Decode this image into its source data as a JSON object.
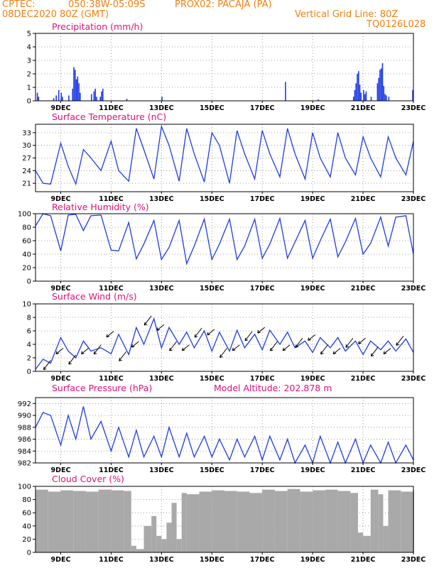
{
  "header": {
    "source": "CPTEC:",
    "coords": "050:38W-05:09S",
    "location": "PROX02: PACAJA (PA)",
    "run": "08DEC2020 80Z (GMT)",
    "grid_note": "Vertical Grid Line: 80Z",
    "code": "TQ0126L028"
  },
  "colors": {
    "series": "#1e3ce6",
    "title": "#e0107a",
    "header": "#f08010",
    "cloud": "#a9a9a9",
    "wind": "#000000"
  },
  "x_ticks": [
    "9DEC",
    "11DEC",
    "13DEC",
    "15DEC",
    "17DEC",
    "19DEC",
    "21DEC",
    "23DEC"
  ],
  "chart_data": [
    {
      "type": "bar",
      "title": "Precipitation (mm/h)",
      "ylim": [
        0,
        5
      ],
      "yticks": [
        0,
        1,
        2,
        3,
        4,
        5
      ],
      "x_range_days": [
        8.0,
        23.0
      ],
      "grid": true,
      "bars": [
        [
          8.05,
          0.6
        ],
        [
          8.1,
          0.3
        ],
        [
          8.7,
          0.2
        ],
        [
          8.8,
          0.4
        ],
        [
          8.9,
          0.8
        ],
        [
          9.0,
          0.6
        ],
        [
          9.05,
          0.3
        ],
        [
          9.3,
          0.4
        ],
        [
          9.45,
          0.9
        ],
        [
          9.5,
          2.5
        ],
        [
          9.55,
          2.3
        ],
        [
          9.6,
          1.6
        ],
        [
          9.65,
          1.8
        ],
        [
          9.7,
          1.3
        ],
        [
          9.75,
          0.6
        ],
        [
          10.2,
          0.5
        ],
        [
          10.3,
          0.7
        ],
        [
          10.35,
          0.9
        ],
        [
          10.4,
          0.3
        ],
        [
          10.55,
          0.3
        ],
        [
          10.6,
          0.7
        ],
        [
          10.65,
          0.9
        ],
        [
          11.6,
          0.15
        ],
        [
          13.0,
          0.3
        ],
        [
          17.9,
          1.4
        ],
        [
          19.2,
          0.1
        ],
        [
          20.6,
          0.3
        ],
        [
          20.65,
          0.8
        ],
        [
          20.7,
          1.3
        ],
        [
          20.75,
          2.0
        ],
        [
          20.8,
          2.2
        ],
        [
          20.85,
          1.2
        ],
        [
          20.9,
          0.6
        ],
        [
          21.0,
          0.8
        ],
        [
          21.05,
          0.5
        ],
        [
          21.1,
          0.7
        ],
        [
          21.3,
          0.3
        ],
        [
          21.55,
          1.3
        ],
        [
          21.6,
          1.7
        ],
        [
          21.65,
          2.3
        ],
        [
          21.7,
          2.4
        ],
        [
          21.75,
          2.8
        ],
        [
          21.8,
          1.1
        ],
        [
          21.85,
          0.5
        ],
        [
          21.9,
          0.4
        ],
        [
          22.0,
          0.3
        ],
        [
          22.95,
          0.8
        ]
      ]
    },
    {
      "type": "line",
      "title": "Surface Temperature (nC)",
      "ylim": [
        19,
        35
      ],
      "yticks": [
        21,
        24,
        27,
        30,
        33
      ],
      "x_range_days": [
        8.0,
        23.0
      ],
      "grid": true,
      "x": [
        8.0,
        8.3,
        8.6,
        9.0,
        9.3,
        9.6,
        9.9,
        10.2,
        10.6,
        11.0,
        11.3,
        11.7,
        12.0,
        12.3,
        12.7,
        13.0,
        13.3,
        13.7,
        14.0,
        14.3,
        14.7,
        15.0,
        15.3,
        15.7,
        16.0,
        16.3,
        16.7,
        17.0,
        17.3,
        17.7,
        18.0,
        18.3,
        18.7,
        19.0,
        19.3,
        19.7,
        20.0,
        20.3,
        20.7,
        21.0,
        21.3,
        21.7,
        22.0,
        22.3,
        22.7,
        23.0
      ],
      "values": [
        24,
        21,
        20.8,
        30.5,
        25,
        20.8,
        29,
        27,
        24,
        31,
        24,
        21.5,
        34,
        29,
        22,
        34.5,
        30,
        21.5,
        34,
        28,
        21.3,
        33,
        30,
        21,
        33.5,
        28,
        22,
        33.5,
        28,
        22.5,
        34,
        28,
        22,
        33,
        27,
        22.5,
        33,
        27,
        23,
        32,
        27,
        22.5,
        32,
        27,
        23,
        31
      ]
    },
    {
      "type": "line",
      "title": "Relative Humidity (%)",
      "ylim": [
        0,
        100
      ],
      "yticks": [
        0,
        20,
        40,
        60,
        80,
        100
      ],
      "x_range_days": [
        8.0,
        23.0
      ],
      "grid": true,
      "x": [
        8.0,
        8.3,
        8.6,
        9.0,
        9.3,
        9.6,
        9.9,
        10.2,
        10.6,
        11.0,
        11.3,
        11.7,
        12.0,
        12.3,
        12.7,
        13.0,
        13.3,
        13.7,
        14.0,
        14.3,
        14.7,
        15.0,
        15.3,
        15.7,
        16.0,
        16.3,
        16.7,
        17.0,
        17.3,
        17.7,
        18.0,
        18.3,
        18.7,
        19.0,
        19.3,
        19.7,
        20.0,
        20.3,
        20.7,
        21.0,
        21.3,
        21.7,
        22.0,
        22.3,
        22.7,
        23.0
      ],
      "values": [
        82,
        100,
        97,
        45,
        98,
        99,
        75,
        97,
        98,
        46,
        45,
        87,
        33,
        55,
        90,
        32,
        50,
        90,
        26,
        52,
        92,
        32,
        55,
        92,
        32,
        52,
        92,
        34,
        55,
        93,
        34,
        58,
        90,
        34,
        60,
        92,
        36,
        58,
        93,
        40,
        56,
        95,
        52,
        95,
        97,
        40
      ]
    },
    {
      "type": "line",
      "title": "Surface Wind (m/s)",
      "ylim": [
        0,
        10
      ],
      "yticks": [
        0,
        2,
        4,
        6,
        8,
        10
      ],
      "x_range_days": [
        8.0,
        23.0
      ],
      "grid": true,
      "x": [
        8.0,
        8.3,
        8.6,
        9.0,
        9.3,
        9.6,
        9.9,
        10.2,
        10.6,
        11.0,
        11.3,
        11.7,
        12.0,
        12.3,
        12.7,
        13.0,
        13.3,
        13.7,
        14.0,
        14.3,
        14.7,
        15.0,
        15.3,
        15.7,
        16.0,
        16.3,
        16.7,
        17.0,
        17.3,
        17.7,
        18.0,
        18.3,
        18.7,
        19.0,
        19.3,
        19.7,
        20.0,
        20.3,
        20.7,
        21.0,
        21.3,
        21.7,
        22.0,
        22.3,
        22.7,
        23.0
      ],
      "values": [
        0.3,
        1.8,
        1.2,
        5,
        3,
        2,
        4.5,
        3,
        3.5,
        2.6,
        5.5,
        2.5,
        6.5,
        4,
        7.8,
        3.5,
        6.5,
        4,
        5.8,
        3.5,
        6,
        3,
        5.8,
        3,
        6.1,
        3.5,
        5.5,
        3.2,
        6.1,
        4,
        5.8,
        3.5,
        4.5,
        2.8,
        5,
        3.5,
        5,
        3,
        4.5,
        2.5,
        4.5,
        3.2,
        4.5,
        3,
        4.8,
        2.8
      ]
    },
    {
      "type": "line",
      "title": "Surface Pressure (hPa)",
      "annotation": "Model Altitude: 202.878 m",
      "ylim": [
        982,
        993
      ],
      "yticks": [
        982,
        984,
        986,
        988,
        990,
        992
      ],
      "x_range_days": [
        8.0,
        23.0
      ],
      "grid": true,
      "x": [
        8.0,
        8.3,
        8.6,
        9.0,
        9.3,
        9.6,
        9.9,
        10.2,
        10.6,
        11.0,
        11.3,
        11.7,
        12.0,
        12.3,
        12.7,
        13.0,
        13.3,
        13.7,
        14.0,
        14.3,
        14.7,
        15.0,
        15.3,
        15.7,
        16.0,
        16.3,
        16.7,
        17.0,
        17.3,
        17.7,
        18.0,
        18.3,
        18.7,
        19.0,
        19.3,
        19.7,
        20.0,
        20.3,
        20.7,
        21.0,
        21.3,
        21.7,
        22.0,
        22.3,
        22.7,
        23.0
      ],
      "values": [
        988,
        990.5,
        990,
        985,
        990,
        986,
        991.5,
        986,
        989,
        984,
        988,
        983,
        987.5,
        983,
        986.5,
        983,
        988,
        983,
        987,
        983,
        986.5,
        983,
        986,
        982.5,
        986,
        983,
        986.5,
        982.5,
        986.5,
        982.5,
        986,
        982,
        985,
        982,
        986.5,
        982,
        985.5,
        982,
        986,
        982,
        985,
        982,
        985.5,
        982,
        985,
        982.5
      ]
    },
    {
      "type": "bar",
      "title": "Cloud Cover (%)",
      "ylim": [
        0,
        100
      ],
      "yticks": [
        0,
        20,
        40,
        60,
        80,
        100
      ],
      "x_range_days": [
        8.0,
        23.0
      ],
      "grid": true,
      "x": [
        8.0,
        8.5,
        9.0,
        9.5,
        10.0,
        10.5,
        11.0,
        11.5,
        11.8,
        12.0,
        12.3,
        12.6,
        12.8,
        13.0,
        13.2,
        13.4,
        13.6,
        13.8,
        14.0,
        14.5,
        15.0,
        15.5,
        16.0,
        16.5,
        17.0,
        17.5,
        18.0,
        18.5,
        19.0,
        19.5,
        20.0,
        20.5,
        20.8,
        21.0,
        21.3,
        21.6,
        21.8,
        22.0,
        22.5,
        23.0
      ],
      "values": [
        95,
        92,
        94,
        93,
        92,
        95,
        94,
        93,
        10,
        5,
        40,
        55,
        25,
        20,
        45,
        75,
        20,
        90,
        88,
        92,
        94,
        93,
        92,
        90,
        95,
        93,
        96,
        92,
        94,
        95,
        93,
        90,
        30,
        25,
        95,
        88,
        40,
        94,
        92,
        95
      ]
    }
  ]
}
